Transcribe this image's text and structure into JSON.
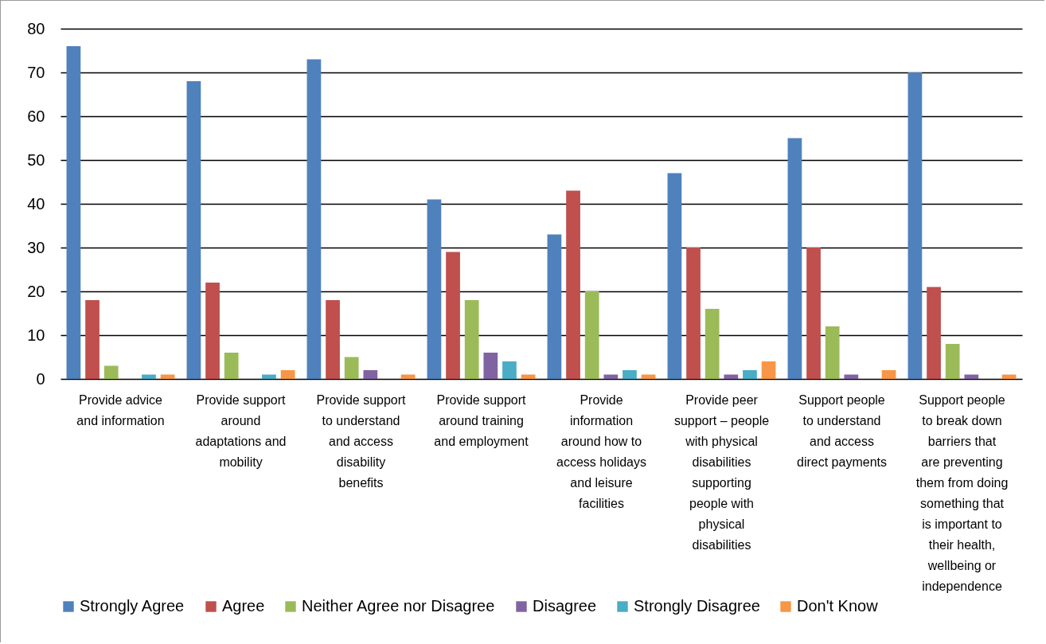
{
  "chart_data": {
    "type": "bar",
    "categories": [
      "Provide advice and information",
      "Provide support around adaptations and mobility",
      "Provide support to understand and access disability benefits",
      "Provide support around training and employment",
      "Provide information around how to access holidays and leisure facilities",
      "Provide peer support – people with physical disabilities supporting people with physical disabilities",
      "Support people to understand and access direct payments",
      "Support people to break down barriers that are preventing them from doing something that is important to their health, wellbeing or independence"
    ],
    "series": [
      {
        "name": "Strongly Agree",
        "color": "#4f81bd",
        "values": [
          76,
          68,
          73,
          41,
          33,
          47,
          55,
          70
        ]
      },
      {
        "name": "Agree",
        "color": "#c0504d",
        "values": [
          18,
          22,
          18,
          29,
          43,
          30,
          30,
          21
        ]
      },
      {
        "name": "Neither Agree nor Disagree",
        "color": "#9bbb59",
        "values": [
          3,
          6,
          5,
          18,
          20,
          16,
          12,
          8
        ]
      },
      {
        "name": "Disagree",
        "color": "#8064a2",
        "values": [
          0,
          0,
          2,
          6,
          1,
          1,
          1,
          1
        ]
      },
      {
        "name": "Strongly Disagree",
        "color": "#4bacc6",
        "values": [
          1,
          1,
          0,
          4,
          2,
          2,
          0,
          0
        ]
      },
      {
        "name": "Don't Know",
        "color": "#f79646",
        "values": [
          1,
          2,
          1,
          1,
          1,
          4,
          2,
          1
        ]
      }
    ],
    "ylim": [
      0,
      80
    ],
    "yticks": [
      0,
      10,
      20,
      30,
      40,
      50,
      60,
      70,
      80
    ],
    "grid": "y",
    "legend": "bottom"
  }
}
